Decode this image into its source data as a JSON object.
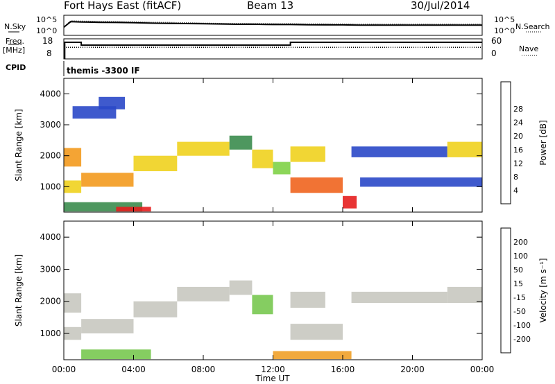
{
  "header": {
    "station": "Fort Hays East (fitACF)",
    "beam": "Beam 13",
    "date": "30/Jul/2014"
  },
  "strip_labels": {
    "nsky": "N.Sky",
    "nsky_hi": "10^5",
    "nsky_lo": "10^0",
    "nsearch": "N.Search",
    "nsearch_hi": "10^5",
    "nsearch_lo": "10^0",
    "freq": "Freq.",
    "freq_unit": "[MHz]",
    "freq_hi": "18",
    "freq_lo": "8",
    "nave": "Nave",
    "nave_hi": "60",
    "nave_lo": "0",
    "cpid": "CPID",
    "cpid_value": "themis -3300 IF"
  },
  "colors": {
    "power": [
      "#0a1ed8",
      "#2a48c8",
      "#1e6e3a",
      "#3b8c4e",
      "#7fd247",
      "#f0d21e",
      "#f39a1e",
      "#f0641e",
      "#e61e1e"
    ],
    "velocity": [
      "#2828d2",
      "#3c5adc",
      "#1e783c",
      "#78c850",
      "#c8c8c0",
      "#f0d23c",
      "#f0a028",
      "#f0641e",
      "#e61e1e"
    ]
  },
  "chart_data": [
    {
      "type": "line",
      "title": "N.Sky / N.Search",
      "x_domain_hours": [
        0,
        24
      ],
      "yscale": "log",
      "ylim": [
        1,
        100000
      ],
      "series": [
        {
          "name": "N.Sky",
          "style": "solid",
          "x": [
            0,
            0.4,
            1,
            2,
            3,
            4,
            5,
            6,
            7,
            8,
            9,
            10,
            11,
            12,
            13,
            14,
            15,
            16,
            17,
            18,
            19,
            20,
            21,
            22,
            23,
            24
          ],
          "y": [
            100,
            3000,
            2500,
            2000,
            1800,
            1500,
            1200,
            1000,
            900,
            800,
            700,
            600,
            600,
            500,
            500,
            450,
            400,
            400,
            350,
            350,
            350,
            350,
            350,
            350,
            350,
            350
          ]
        },
        {
          "name": "N.Search",
          "style": "dotted",
          "x": [
            0,
            0.4,
            1,
            2,
            3,
            4,
            5,
            6,
            7,
            8,
            9,
            10,
            11,
            12,
            13,
            14,
            15,
            16,
            17,
            18,
            19,
            20,
            21,
            22,
            23,
            24
          ],
          "y": [
            100,
            5000,
            4000,
            3500,
            3000,
            2500,
            2000,
            1800,
            1500,
            1200,
            1000,
            900,
            900,
            800,
            800,
            700,
            700,
            650,
            600,
            600,
            600,
            600,
            600,
            600,
            600,
            600
          ]
        }
      ]
    },
    {
      "type": "line",
      "title": "Freq. / Nave",
      "x_domain_hours": [
        0,
        24
      ],
      "ylim": [
        8,
        18
      ],
      "series": [
        {
          "name": "Freq.",
          "style": "solid",
          "x": [
            0,
            0.05,
            0.05,
            1.0,
            1.0,
            13.0,
            13.0,
            24
          ],
          "y": [
            8,
            8,
            16.5,
            16.5,
            15,
            15,
            16.5,
            16.5
          ]
        },
        {
          "name": "Nave",
          "style": "dotted",
          "x": [
            0,
            24
          ],
          "y": [
            13.8,
            13.8
          ]
        }
      ]
    },
    {
      "type": "heatmap",
      "quantity": "Power",
      "ylabel": "Slant Range [km]",
      "xlabel": "",
      "x_domain_hours": [
        0,
        24
      ],
      "ylim_km": [
        180,
        4500
      ],
      "yticks": [
        "1000",
        "2000",
        "3000",
        "4000"
      ],
      "colorbar_label": "Power [dB]",
      "colorbar_ticks": [
        "4",
        "8",
        "12",
        "16",
        "20",
        "24",
        "28"
      ],
      "bands": [
        {
          "x0": 0.0,
          "x1": 1.0,
          "r0": 1650,
          "r1": 2250,
          "level": 6
        },
        {
          "x0": 0.0,
          "x1": 1.0,
          "r0": 800,
          "r1": 1200,
          "level": 5
        },
        {
          "x0": 1.0,
          "x1": 4.0,
          "r0": 1000,
          "r1": 1450,
          "level": 6
        },
        {
          "x0": 4.0,
          "x1": 6.5,
          "r0": 1500,
          "r1": 2000,
          "level": 5
        },
        {
          "x0": 6.5,
          "x1": 9.5,
          "r0": 2000,
          "r1": 2450,
          "level": 5
        },
        {
          "x0": 9.5,
          "x1": 10.8,
          "r0": 2200,
          "r1": 2650,
          "level": 3
        },
        {
          "x0": 10.8,
          "x1": 12.0,
          "r0": 1600,
          "r1": 2200,
          "level": 5
        },
        {
          "x0": 12.0,
          "x1": 13.0,
          "r0": 1400,
          "r1": 1800,
          "level": 4
        },
        {
          "x0": 13.0,
          "x1": 16.0,
          "r0": 800,
          "r1": 1300,
          "level": 7
        },
        {
          "x0": 13.0,
          "x1": 15.0,
          "r0": 1800,
          "r1": 2300,
          "level": 5
        },
        {
          "x0": 16.0,
          "x1": 16.8,
          "r0": 300,
          "r1": 700,
          "level": 8
        },
        {
          "x0": 17.0,
          "x1": 24.0,
          "r0": 1000,
          "r1": 1300,
          "level": 1
        },
        {
          "x0": 16.5,
          "x1": 22.0,
          "r0": 1950,
          "r1": 2300,
          "level": 1
        },
        {
          "x0": 22.0,
          "x1": 24.0,
          "r0": 1950,
          "r1": 2450,
          "level": 5
        },
        {
          "x0": 0.0,
          "x1": 4.5,
          "r0": 200,
          "r1": 500,
          "level": 3
        },
        {
          "x0": 3.0,
          "x1": 5.0,
          "r0": 200,
          "r1": 350,
          "level": 8
        },
        {
          "x0": 0.5,
          "x1": 3.0,
          "r0": 3200,
          "r1": 3600,
          "level": 1
        },
        {
          "x0": 2.0,
          "x1": 3.5,
          "r0": 3500,
          "r1": 3900,
          "level": 1
        }
      ]
    },
    {
      "type": "heatmap",
      "quantity": "Velocity",
      "ylabel": "Slant Range [km]",
      "xlabel": "Time UT",
      "x_domain_hours": [
        0,
        24
      ],
      "ylim_km": [
        180,
        4500
      ],
      "yticks": [
        "1000",
        "2000",
        "3000",
        "4000"
      ],
      "xticks": [
        "00:00",
        "04:00",
        "08:00",
        "12:00",
        "16:00",
        "20:00",
        "00:00"
      ],
      "colorbar_label": "Velocity [m s⁻¹]",
      "colorbar_ticks": [
        "200",
        "100",
        "50",
        "15",
        "-15",
        "-50",
        "-100",
        "-200"
      ],
      "bands": [
        {
          "x0": 0.0,
          "x1": 1.0,
          "r0": 1650,
          "r1": 2250,
          "level": 4
        },
        {
          "x0": 0.0,
          "x1": 1.0,
          "r0": 800,
          "r1": 1200,
          "level": 4
        },
        {
          "x0": 1.0,
          "x1": 4.0,
          "r0": 1000,
          "r1": 1450,
          "level": 4
        },
        {
          "x0": 4.0,
          "x1": 6.5,
          "r0": 1500,
          "r1": 2000,
          "level": 4
        },
        {
          "x0": 6.5,
          "x1": 9.5,
          "r0": 2000,
          "r1": 2450,
          "level": 4
        },
        {
          "x0": 9.5,
          "x1": 10.8,
          "r0": 2200,
          "r1": 2650,
          "level": 4
        },
        {
          "x0": 10.8,
          "x1": 12.0,
          "r0": 1600,
          "r1": 2200,
          "level": 3
        },
        {
          "x0": 13.0,
          "x1": 16.0,
          "r0": 800,
          "r1": 1300,
          "level": 4
        },
        {
          "x0": 13.0,
          "x1": 15.0,
          "r0": 1800,
          "r1": 2300,
          "level": 4
        },
        {
          "x0": 16.5,
          "x1": 22.0,
          "r0": 1950,
          "r1": 2300,
          "level": 4
        },
        {
          "x0": 22.0,
          "x1": 24.0,
          "r0": 1950,
          "r1": 2450,
          "level": 4
        },
        {
          "x0": 1.0,
          "x1": 5.0,
          "r0": 200,
          "r1": 500,
          "level": 3
        },
        {
          "x0": 12.0,
          "x1": 16.5,
          "r0": 200,
          "r1": 450,
          "level": 6
        }
      ]
    }
  ]
}
